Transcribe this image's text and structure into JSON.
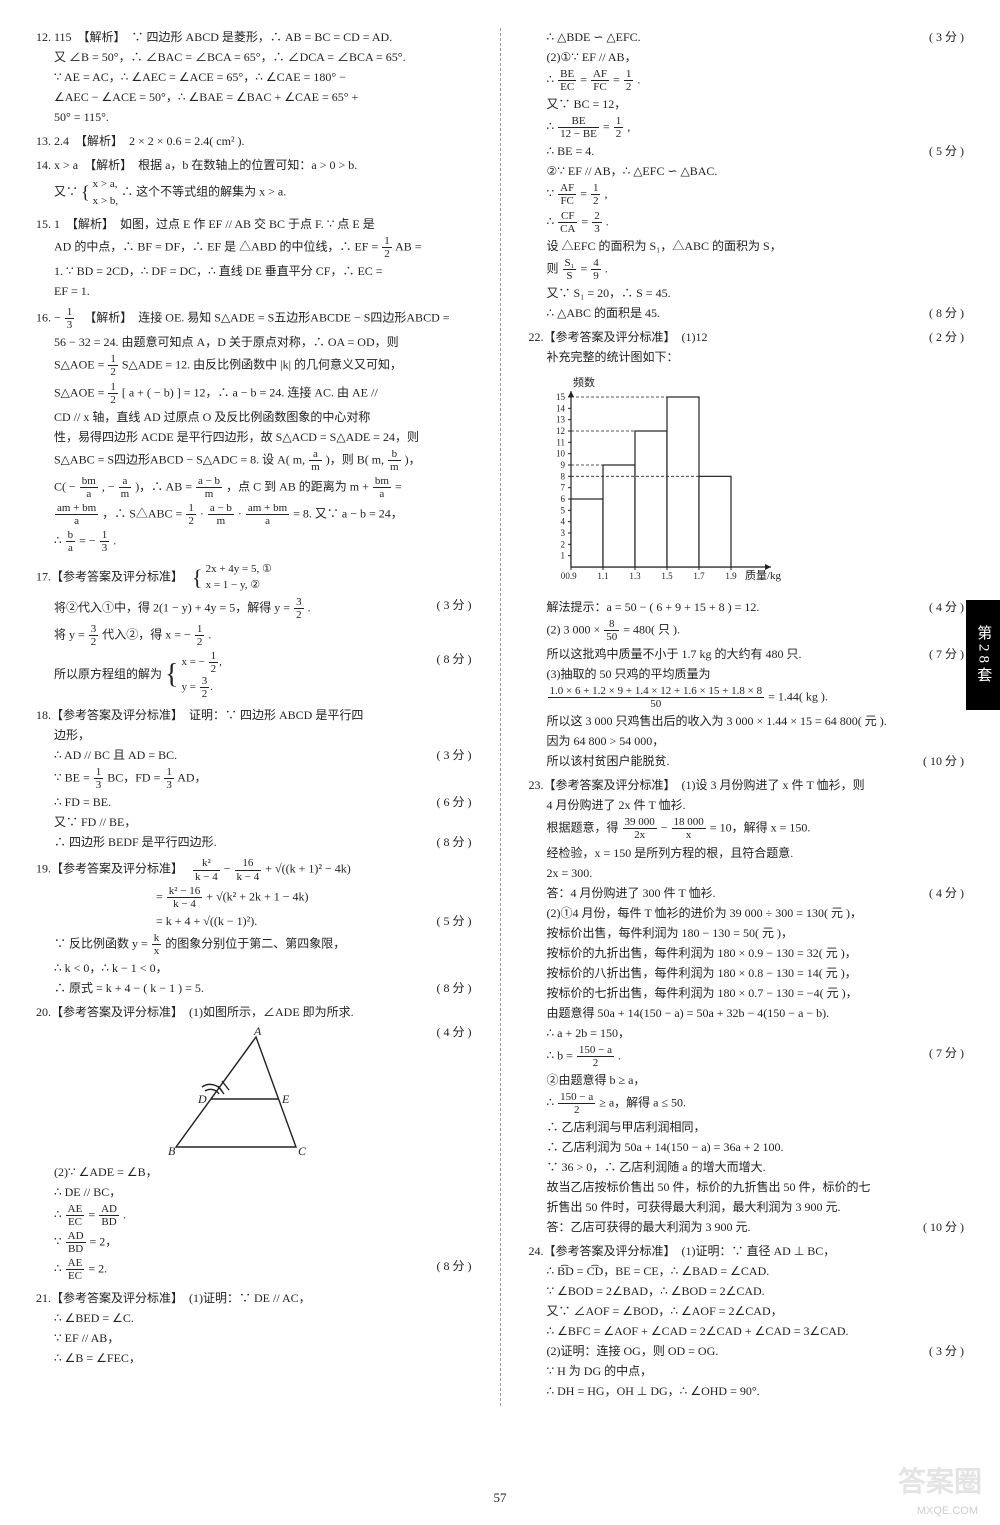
{
  "side_tab": "第28套",
  "page_number": "57",
  "watermark_main": "答案圈",
  "watermark_sub": "MXQE.COM",
  "left": {
    "q12": {
      "head": "12. 115　【解析】　∵ 四边形 ABCD 是菱形，∴ AB = BC = CD = AD.",
      "l2": "又 ∠B = 50°，∴ ∠BAC = ∠BCA = 65°，∴ ∠DCA = ∠BCA = 65°.",
      "l3": "∵ AE = AC，∴ ∠AEC = ∠ACE = 65°，∴ ∠CAE = 180° −",
      "l4": "∠AEC − ∠ACE = 50°，∴ ∠BAE = ∠BAC + ∠CAE = 65° +",
      "l5": "50° = 115°."
    },
    "q13": "13. 2.4　【解析】　2 × 2 × 0.6 = 2.4( cm² ).",
    "q14": {
      "head": "14. x > a　【解析】　根据 a，b 在数轴上的位置可知：a > 0 > b.",
      "l2a": "又∵",
      "sys1": "x > a,",
      "sys2": "x > b,",
      "l2b": "∴ 这个不等式组的解集为 x > a."
    },
    "q15": {
      "head": "15. 1　【解析】　如图，过点 E 作 EF // AB 交 BC 于点 F. ∵ 点 E 是",
      "l2a": "AD 的中点，∴ BF = DF，∴ EF 是 △ABD 的中位线，∴ EF = ",
      "frac1n": "1",
      "frac1d": "2",
      "l2b": " AB =",
      "l3": "1. ∵ BD = 2CD，∴ DF = DC，∴ 直线 DE 垂直平分 CF，∴ EC =",
      "l4": "EF = 1."
    },
    "q16": {
      "head_a": "16. − ",
      "frac1n": "1",
      "frac1d": "3",
      "head_b": "　【解析】　连接 OE. 易知 S△ADE = S五边形ABCDE − S四边形ABCD =",
      "l2": "56 − 32 = 24. 由题意可知点 A，D 关于原点对称，∴ OA = OD，则",
      "l3a": "S△AOE = ",
      "frac2n": "1",
      "frac2d": "2",
      "l3b": " S△ADE = 12. 由反比例函数中 |k| 的几何意义又可知，",
      "l4a": "S△AOE = ",
      "frac3n": "1",
      "frac3d": "2",
      "l4b": "[ a + ( − b) ] = 12，∴ a − b = 24. 连接 AC. 由 AE //",
      "l5": "CD // x 轴，直线 AD 过原点 O 及反比例函数图象的中心对称",
      "l6": "性，易得四边形 ACDE 是平行四边形，故 S△ACD = S△ADE = 24，则",
      "l7a": "S△ABC = S四边形ABCD − S△ADC = 8. 设 A( m, ",
      "frac4n": "a",
      "frac4d": "m",
      "l7b": " )，则 B( m, ",
      "frac5n": "b",
      "frac5d": "m",
      "l7c": " )，",
      "l8a": "C( − ",
      "frac6n": "bm",
      "frac6d": "a",
      "l8b": ", − ",
      "frac7n": "a",
      "frac7d": "m",
      "l8c": " )，∴ AB = ",
      "frac8n": "a − b",
      "frac8d": "m",
      "l8d": "，点 C 到 AB 的距离为 m + ",
      "frac9n": "bm",
      "frac9d": "a",
      "l8e": " =",
      "l9a": "",
      "frac10n": "am + bm",
      "frac10d": "a",
      "l9b": "，∴ S△ABC = ",
      "frac11n": "1",
      "frac11d": "2",
      "l9c": " · ",
      "frac12n": "a − b",
      "frac12d": "m",
      "l9d": " · ",
      "frac13n": "am + bm",
      "frac13d": "a",
      "l9e": " = 8. 又∵ a − b = 24，",
      "l10a": "∴ ",
      "frac14n": "b",
      "frac14d": "a",
      "l10b": " = − ",
      "frac15n": "1",
      "frac15d": "3",
      "l10c": "."
    },
    "q17": {
      "head": "17.【参考答案及评分标准】　",
      "sys1": "2x + 4y = 5, ①",
      "sys2": "x = 1 − y, ②",
      "l2a": "将②代入①中，得 2(1 − y) + 4y = 5，解得 y = ",
      "frac1n": "3",
      "frac1d": "2",
      "l2b": ".",
      "s1": "( 3 分 )",
      "l3a": "将 y = ",
      "frac2n": "3",
      "frac2d": "2",
      "l3b": " 代入②，得 x = − ",
      "frac3n": "1",
      "frac3d": "2",
      "l3c": ".",
      "l4a": "所以原方程组的解为",
      "sys3a": "x = − ",
      "frac4n": "1",
      "frac4d": "2",
      "sys3b": ",",
      "sys4a": "y = ",
      "frac5n": "3",
      "frac5d": "2",
      "sys4b": ".",
      "s2": "( 8 分 )"
    },
    "q18": {
      "head": "18.【参考答案及评分标准】　证明：∵ 四边形 ABCD 是平行四",
      "l1b": "边形，",
      "l2": "∴ AD // BC 且 AD = BC.",
      "s1": "( 3 分 )",
      "l3a": "∵ BE = ",
      "frac1n": "1",
      "frac1d": "3",
      "l3b": " BC，FD = ",
      "frac2n": "1",
      "frac2d": "3",
      "l3c": " AD，",
      "l4": "∴ FD = BE.",
      "s2": "( 6 分 )",
      "l5": "又∵ FD // BE，",
      "l6": "∴ 四边形 BEDF 是平行四边形.",
      "s3": "( 8 分 )"
    },
    "q19": {
      "head": "19.【参考答案及评分标准】　",
      "frac1n": "k²",
      "frac1d": "k − 4",
      "mid1": " − ",
      "frac2n": "16",
      "frac2d": "k − 4",
      "mid2": " + √((k + 1)² − 4k)",
      "l2a": "= ",
      "frac3n": "k² − 16",
      "frac3d": "k − 4",
      "l2b": " + √(k² + 2k + 1 − 4k)",
      "l3": "= k + 4 + √((k − 1)²).",
      "s1": "( 5 分 )",
      "l4a": "∵ 反比例函数 y = ",
      "frac4n": "k",
      "frac4d": "x",
      "l4b": " 的图象分别位于第二、第四象限，",
      "l5": "∴ k < 0，∴ k − 1 < 0，",
      "l6": "∴ 原式 = k + 4 − ( k − 1 ) = 5.",
      "s2": "( 8 分 )"
    },
    "q20": {
      "head": "20.【参考答案及评分标准】　(1)如图所示，∠ADE 即为所求.",
      "s1": "( 4 分 )",
      "diagram": {
        "labels": [
          "A",
          "B",
          "C",
          "D",
          "E"
        ],
        "stroke": "#222",
        "linewidth": 1.4
      },
      "l2": "(2)∵ ∠ADE = ∠B，",
      "l3": "∴ DE // BC，",
      "l4a": "∴ ",
      "frac1n": "AE",
      "frac1d": "EC",
      "l4b": " = ",
      "frac2n": "AD",
      "frac2d": "BD",
      "l4c": ".",
      "l5a": "∵ ",
      "frac3n": "AD",
      "frac3d": "BD",
      "l5b": " = 2，",
      "l6a": "∴ ",
      "frac4n": "AE",
      "frac4d": "EC",
      "l6b": " = 2.",
      "s2": "( 8 分 )"
    },
    "q21": {
      "head": "21.【参考答案及评分标准】　(1)证明：∵ DE // AC，",
      "l2": "∴ ∠BED = ∠C.",
      "l3": "∵ EF // AB，",
      "l4": "∴ ∠B = ∠FEC，"
    }
  },
  "right": {
    "cont21": {
      "l1": "∴ △BDE ∽ △EFC.",
      "s1": "( 3 分 )",
      "l2": "(2)①∵ EF // AB，",
      "l3a": "∴ ",
      "frac1n": "BE",
      "frac1d": "EC",
      "l3b": " = ",
      "frac2n": "AF",
      "frac2d": "FC",
      "l3c": " = ",
      "frac3n": "1",
      "frac3d": "2",
      "l3d": ".",
      "l4": "又∵ BC = 12，",
      "l5a": "∴ ",
      "frac4n": "BE",
      "frac4d": "12 − BE",
      "l5b": " = ",
      "frac5n": "1",
      "frac5d": "2",
      "l5c": ",",
      "l6": "∴ BE = 4.",
      "s2": "( 5 分 )",
      "l7": "②∵ EF // AB，∴ △EFC ∽ △BAC.",
      "l8a": "∵ ",
      "frac6n": "AF",
      "frac6d": "FC",
      "l8b": " = ",
      "frac7n": "1",
      "frac7d": "2",
      "l8c": ",",
      "l9a": "∴ ",
      "frac8n": "CF",
      "frac8d": "CA",
      "l9b": " = ",
      "frac9n": "2",
      "frac9d": "3",
      "l9c": ".",
      "l10": "设 △EFC 的面积为 S₁，△ABC 的面积为 S，",
      "l11a": "则 ",
      "frac10n": "S₁",
      "frac10d": "S",
      "l11b": " = ",
      "frac11n": "4",
      "frac11d": "9",
      "l11c": ".",
      "l12": "又∵ S₁ = 20，∴ S = 45.",
      "l13": "∴ △ABC 的面积是 45.",
      "s3": "( 8 分 )"
    },
    "q22": {
      "head": "22.【参考答案及评分标准】　(1)12",
      "s1": "( 2 分 )",
      "l1": "补充完整的统计图如下：",
      "histogram": {
        "y_label": "频数",
        "x_label": "质量/kg",
        "y_ticks": [
          1,
          2,
          3,
          4,
          5,
          6,
          7,
          8,
          9,
          10,
          11,
          12,
          13,
          14,
          15
        ],
        "x_ticks": [
          "0",
          "0.9",
          "1.1",
          "1.3",
          "1.5",
          "1.7",
          "1.9"
        ],
        "bars": [
          {
            "x0": 0.9,
            "x1": 1.1,
            "h": 6
          },
          {
            "x0": 1.1,
            "x1": 1.3,
            "h": 9
          },
          {
            "x0": 1.3,
            "x1": 1.5,
            "h": 12
          },
          {
            "x0": 1.5,
            "x1": 1.7,
            "h": 15
          },
          {
            "x0": 1.7,
            "x1": 1.9,
            "h": 8
          }
        ],
        "new_bar_index": 2,
        "bar_fill": "#ffffff",
        "bar_stroke": "#222",
        "axis_color": "#222",
        "linewidth": 1.2
      },
      "l2": "解法提示：a = 50 − ( 6 + 9 + 15 + 8 ) = 12.",
      "s2": "( 4 分 )",
      "l3a": "(2) 3 000 × ",
      "frac1n": "8",
      "frac1d": "50",
      "l3b": " = 480( 只 ).",
      "l4": "所以这批鸡中质量不小于 1.7 kg 的大约有 480 只.",
      "s3": "( 7 分 )",
      "l5": "(3)抽取的 50 只鸡的平均质量为",
      "frac2n": "1.0 × 6 + 1.2 × 9 + 1.4 × 12 + 1.6 × 15 + 1.8 × 8",
      "frac2d": "50",
      "l6b": " = 1.44( kg ).",
      "l7": "所以这 3 000 只鸡售出后的收入为 3 000 × 1.44 × 15 = 64 800( 元 ).",
      "l8": "因为 64 800 > 54 000，",
      "l9": "所以该村贫困户能脱贫.",
      "s4": "( 10 分 )"
    },
    "q23": {
      "head": "23.【参考答案及评分标准】　(1)设 3 月份购进了 x 件 T 恤衫，则",
      "l1b": "4 月份购进了 2x 件 T 恤衫.",
      "l2a": "根据题意，得 ",
      "frac1n": "39 000",
      "frac1d": "2x",
      "l2b": " − ",
      "frac2n": "18 000",
      "frac2d": "x",
      "l2c": " = 10，解得 x = 150.",
      "l3": "经检验，x = 150 是所列方程的根，且符合题意.",
      "l4": "2x = 300.",
      "l5": "答：4 月份购进了 300 件 T 恤衫.",
      "s1": "( 4 分 )",
      "l6": "(2)①4 月份，每件 T 恤衫的进价为 39 000 ÷ 300 = 130( 元 )，",
      "l7": "按标价出售，每件利润为 180 − 130 = 50( 元 )，",
      "l8": "按标价的九折出售，每件利润为 180 × 0.9 − 130 = 32( 元 )，",
      "l9": "按标价的八折出售，每件利润为 180 × 0.8 − 130 = 14( 元 )，",
      "l10": "按标价的七折出售，每件利润为 180 × 0.7 − 130 = −4( 元 )，",
      "l11": "由题意得 50a + 14(150 − a) = 50a + 32b − 4(150 − a − b).",
      "l12": "∴ a + 2b = 150，",
      "l13a": "∴ b = ",
      "frac3n": "150 − a",
      "frac3d": "2",
      "l13b": ".",
      "s2": "( 7 分 )",
      "l14": "②由题意得 b ≥ a，",
      "l15a": "∴ ",
      "frac4n": "150 − a",
      "frac4d": "2",
      "l15b": " ≥ a，解得 a ≤ 50.",
      "l16": "∴ 乙店利润与甲店利润相同，",
      "l17": "∴ 乙店利润为 50a + 14(150 − a) = 36a + 2 100.",
      "l18": "∵ 36 > 0，∴ 乙店利润随 a 的增大而增大.",
      "l19": "故当乙店按标价售出 50 件，标价的九折售出 50 件，标价的七",
      "l20": "折售出 50 件时，可获得最大利润，最大利润为 3 900 元.",
      "l21": "答：乙店可获得的最大利润为 3 900 元.",
      "s3": "( 10 分 )"
    },
    "q24": {
      "head": "24.【参考答案及评分标准】　(1)证明：∵ 直径 AD ⊥ BC，",
      "l2": "∴ B͡D = C͡D，BE = CE，∴ ∠BAD = ∠CAD.",
      "l3": "∵ ∠BOD = 2∠BAD，∴ ∠BOD = 2∠CAD.",
      "l4": "又∵ ∠AOF = ∠BOD，∴ ∠AOF = 2∠CAD，",
      "l5": "∴ ∠BFC = ∠AOF + ∠CAD = 2∠CAD + ∠CAD = 3∠CAD.",
      "s1": "( 3 分 )",
      "l6": "(2)证明：连接 OG，则 OD = OG.",
      "l7": "∵ H 为 DG 的中点，",
      "l8": "∴ DH = HG，OH ⊥ DG，∴ ∠OHD = 90°."
    }
  }
}
